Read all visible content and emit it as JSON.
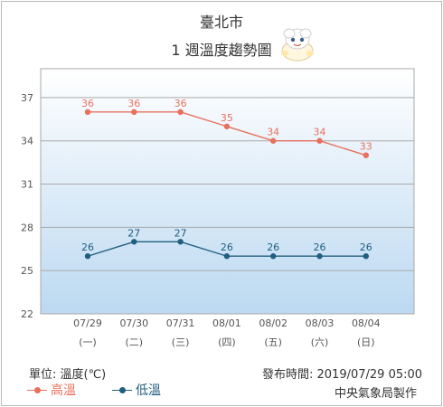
{
  "header": {
    "city": "臺北市",
    "subtitle": "1 週溫度趨勢圖"
  },
  "footer": {
    "unit": "單位: 溫度(℃)",
    "published": "發布時間: 2019/07/29 05:00",
    "maker": "中央氣象局製作"
  },
  "colors": {
    "high": "#e8705d",
    "low": "#205f80",
    "plot_top": "#ffffff",
    "plot_bottom": "#bcd9f1"
  },
  "chart_data": {
    "type": "line",
    "categories": [
      "07/29",
      "07/30",
      "07/31",
      "08/01",
      "08/02",
      "08/03",
      "08/04"
    ],
    "weekdays": [
      "(一)",
      "(二)",
      "(三)",
      "(四)",
      "(五)",
      "(六)",
      "(日)"
    ],
    "yticks": [
      22,
      25,
      28,
      31,
      34,
      37
    ],
    "ylim": [
      22,
      39
    ],
    "grid": true,
    "legend_position": "bottom-left",
    "series": [
      {
        "name": "高溫",
        "key": "high",
        "values": [
          36,
          36,
          36,
          35,
          34,
          34,
          33
        ]
      },
      {
        "name": "低溫",
        "key": "low",
        "values": [
          26,
          27,
          27,
          26,
          26,
          26,
          26
        ]
      }
    ]
  }
}
